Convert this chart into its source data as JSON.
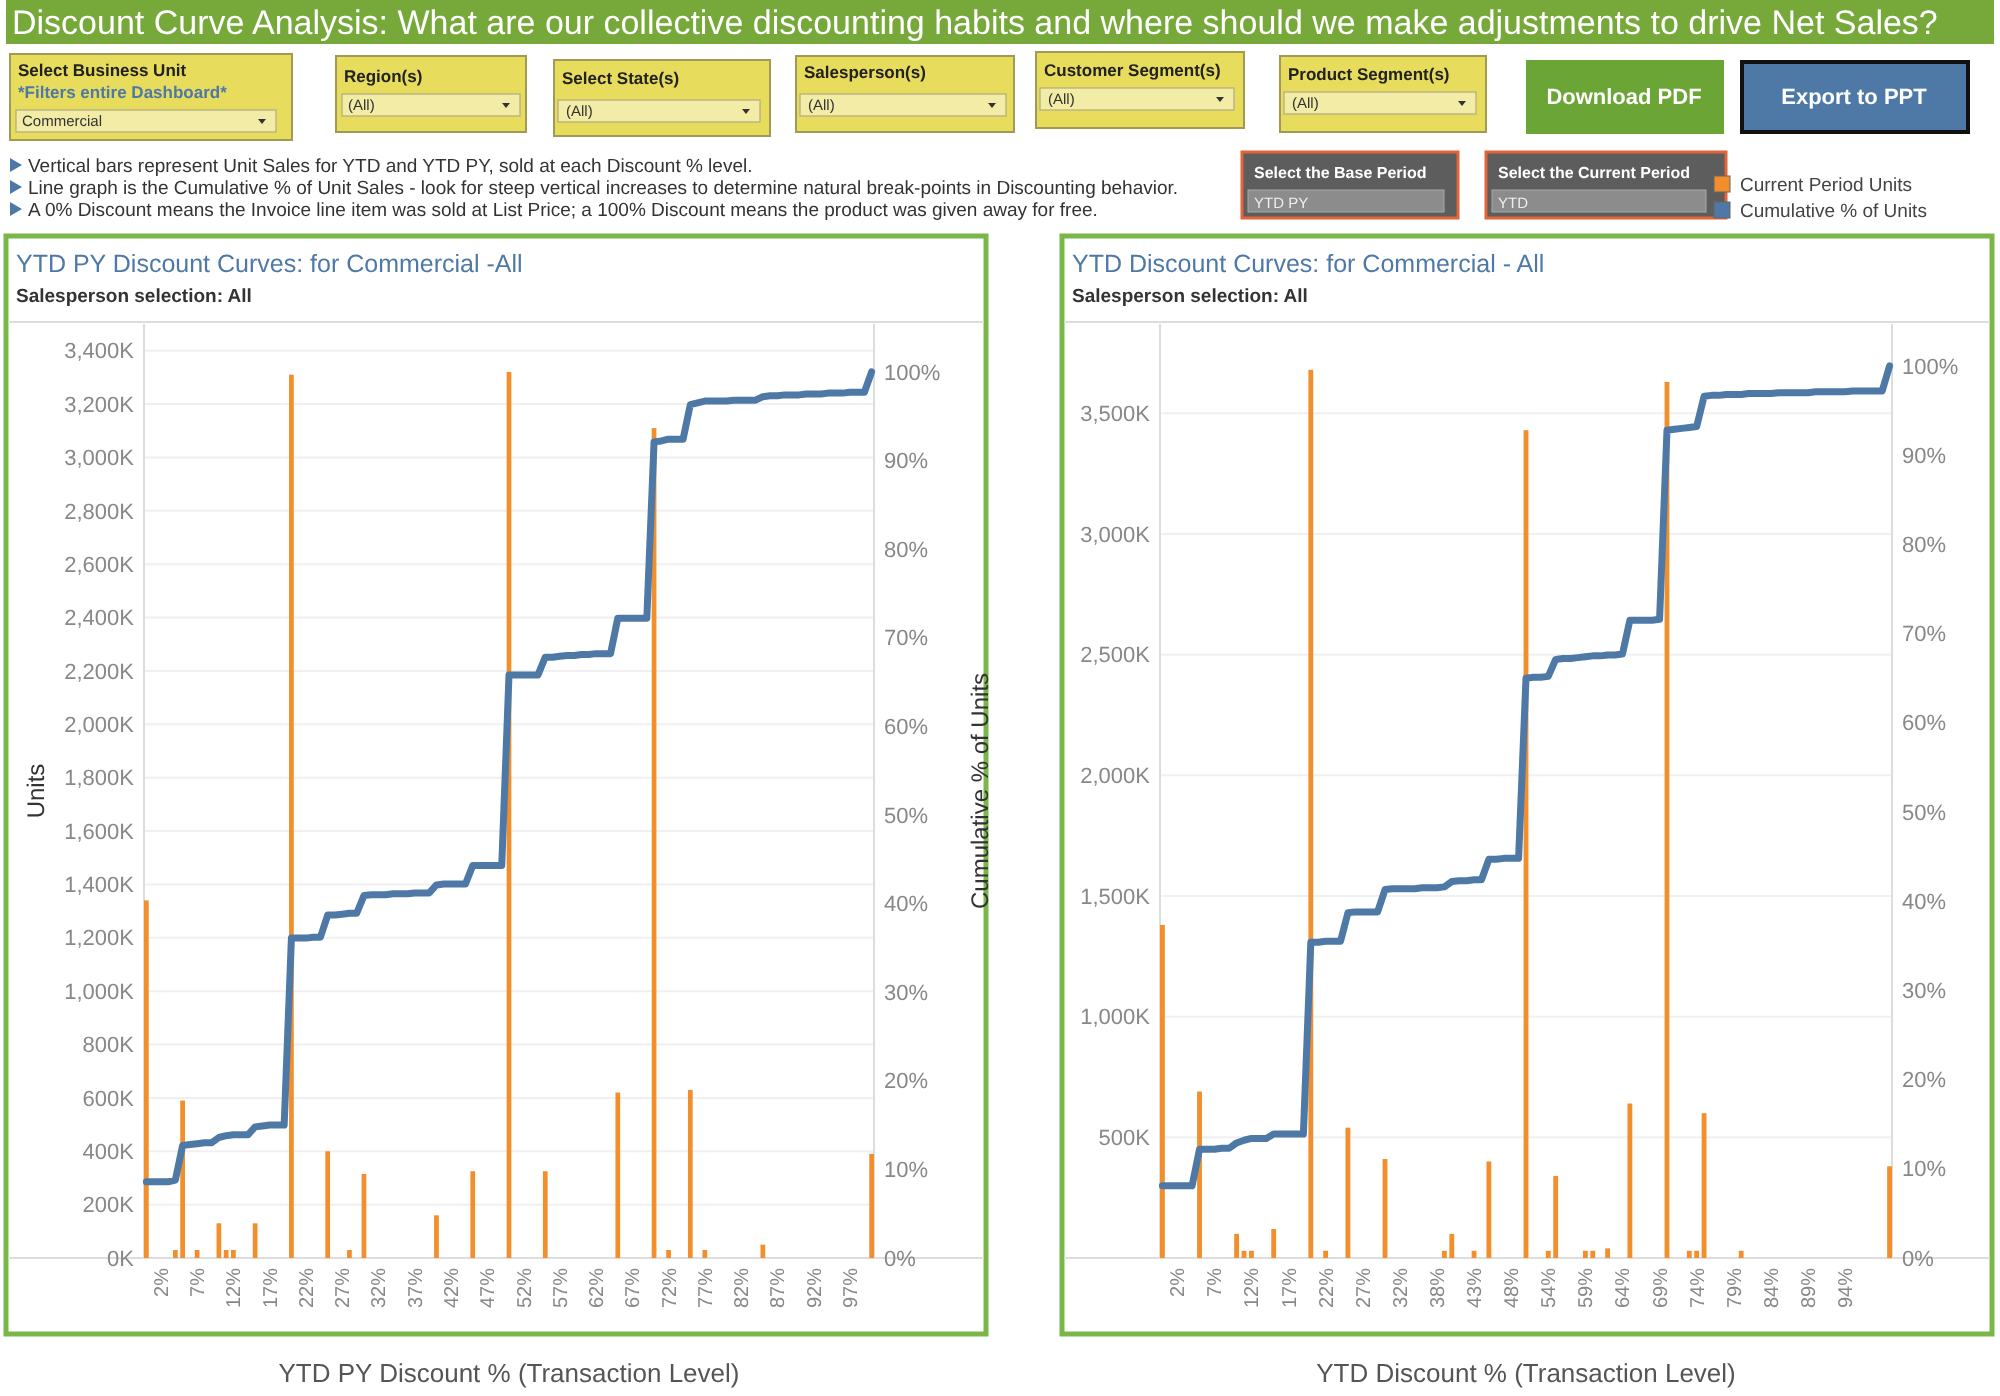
{
  "chart_data": [
    {
      "type": "other",
      "title": "Discount Curve Analysis: What are our collective discounting habits and where should we make adjustments to drive Net Sales?",
      "annotations": [
        "Select Business Unit",
        "*Filters entire Dashboard*",
        "Commercial",
        "Region(s)",
        "(All)",
        "Select State(s)",
        "(All)",
        "Salesperson(s)",
        "(All)",
        "Customer Segment(s)",
        "(All)",
        "Product Segment(s)",
        "(All)",
        "Download PDF",
        "Export to PPT",
        "Vertical bars represent Unit Sales for  YTD and YTD PY, sold at each Discount % level.",
        "Line graph is the Cumulative % of Unit Sales - look for steep vertical increases to determine natural break-points in Discounting behavior.",
        "A 0% Discount means the Invoice line item was sold at List Price; a 100% Discount means the product was given away for free.",
        "Select the Base Period",
        "YTD PY",
        "Select the Current Period",
        "YTD"
      ]
    },
    {
      "type": "bar",
      "title": "YTD PY Discount Curves: for Commercial -All",
      "subtitle": "Salesperson selection: All",
      "xlabel": "YTD PY Discount % (Transaction Level)",
      "ylabel": "Units",
      "y2label": "Cumulative % of Units",
      "legend": "top right",
      "grid": "y",
      "categories": [
        null,
        null,
        "2%",
        null,
        null,
        null,
        null,
        "7%",
        null,
        null,
        null,
        null,
        "12%",
        null,
        null,
        null,
        null,
        "17%",
        null,
        null,
        null,
        null,
        "22%",
        null,
        null,
        null,
        null,
        "27%",
        null,
        null,
        null,
        null,
        "32%",
        null,
        null,
        null,
        null,
        "37%",
        null,
        null,
        null,
        null,
        "42%",
        null,
        null,
        null,
        null,
        "47%",
        null,
        null,
        null,
        null,
        "52%",
        null,
        null,
        null,
        null,
        "57%",
        null,
        null,
        null,
        null,
        "62%",
        null,
        null,
        null,
        null,
        "67%",
        null,
        null,
        null,
        null,
        "72%",
        null,
        null,
        null,
        null,
        "77%",
        null,
        null,
        null,
        null,
        "82%",
        null,
        null,
        null,
        null,
        "87%",
        null,
        null,
        null,
        null,
        "92%",
        null,
        null,
        null,
        null,
        "97%",
        null,
        null,
        null
      ],
      "ylim": [
        0,
        3500
      ],
      "yticks": [
        {
          "value": 0,
          "label": "0K"
        },
        {
          "value": 200,
          "label": "200K"
        },
        {
          "value": 400,
          "label": "400K"
        },
        {
          "value": 600,
          "label": "600K"
        },
        {
          "value": 800,
          "label": "800K"
        },
        {
          "value": 1000,
          "label": "1,000K"
        },
        {
          "value": 1200,
          "label": "1,200K"
        },
        {
          "value": 1400,
          "label": "1,400K"
        },
        {
          "value": 1600,
          "label": "1,600K"
        },
        {
          "value": 1800,
          "label": "1,800K"
        },
        {
          "value": 2000,
          "label": "2,000K"
        },
        {
          "value": 2200,
          "label": "2,200K"
        },
        {
          "value": 2400,
          "label": "2,400K"
        },
        {
          "value": 2600,
          "label": "2,600K"
        },
        {
          "value": 2800,
          "label": "2,800K"
        },
        {
          "value": 3000,
          "label": "3,000K"
        },
        {
          "value": 3200,
          "label": "3,200K"
        },
        {
          "value": 3400,
          "label": "3,400K"
        }
      ],
      "y2lim": [
        0,
        105.4
      ],
      "y2ticks": [
        {
          "value": 0,
          "label": "0%"
        },
        {
          "value": 10,
          "label": "10%"
        },
        {
          "value": 20,
          "label": "20%"
        },
        {
          "value": 30,
          "label": "30%"
        },
        {
          "value": 40,
          "label": "40%"
        },
        {
          "value": 50,
          "label": "50%"
        },
        {
          "value": 60,
          "label": "60%"
        },
        {
          "value": 70,
          "label": "70%"
        },
        {
          "value": 80,
          "label": "80%"
        },
        {
          "value": 90,
          "label": "90%"
        },
        {
          "value": 100,
          "label": "100%"
        }
      ],
      "series": [
        {
          "name": "Current Period Units",
          "type": "bar",
          "color": "#f28e2b",
          "values": [
            1340,
            0,
            0,
            0,
            30,
            590,
            0,
            30,
            0,
            0,
            130,
            30,
            30,
            0,
            0,
            130,
            0,
            0,
            0,
            0,
            3310,
            0,
            0,
            0,
            0,
            400,
            0,
            0,
            30,
            0,
            315,
            0,
            0,
            0,
            0,
            0,
            0,
            0,
            0,
            0,
            160,
            0,
            0,
            0,
            0,
            325,
            0,
            0,
            0,
            0,
            3320,
            0,
            0,
            0,
            0,
            325,
            0,
            0,
            0,
            0,
            0,
            0,
            0,
            0,
            0,
            620,
            0,
            0,
            0,
            0,
            3110,
            0,
            30,
            0,
            0,
            630,
            0,
            30,
            0,
            0,
            0,
            0,
            0,
            0,
            0,
            50,
            0,
            0,
            0,
            0,
            0,
            0,
            0,
            0,
            0,
            0,
            0,
            0,
            0,
            0,
            390
          ]
        },
        {
          "name": "Cumulative % of Units",
          "type": "line",
          "axis": "y2",
          "color": "#4e79a7",
          "values": [
            8.6,
            8.6,
            8.6,
            8.6,
            8.8,
            12.7,
            12.8,
            12.9,
            13.0,
            13.0,
            13.6,
            13.8,
            13.9,
            13.9,
            13.9,
            14.8,
            14.9,
            15.0,
            15.0,
            15.0,
            36.1,
            36.1,
            36.1,
            36.2,
            36.2,
            38.7,
            38.7,
            38.8,
            38.9,
            38.9,
            40.9,
            41.0,
            41.0,
            41.0,
            41.1,
            41.1,
            41.1,
            41.2,
            41.2,
            41.2,
            42.1,
            42.2,
            42.2,
            42.2,
            42.2,
            44.3,
            44.3,
            44.3,
            44.3,
            44.3,
            65.8,
            65.8,
            65.8,
            65.8,
            65.8,
            67.8,
            67.8,
            67.9,
            68.0,
            68.0,
            68.1,
            68.1,
            68.2,
            68.2,
            68.2,
            72.2,
            72.2,
            72.2,
            72.2,
            72.2,
            92.1,
            92.2,
            92.4,
            92.4,
            92.4,
            96.3,
            96.5,
            96.7,
            96.7,
            96.7,
            96.7,
            96.8,
            96.8,
            96.8,
            96.8,
            97.2,
            97.3,
            97.3,
            97.4,
            97.4,
            97.4,
            97.5,
            97.5,
            97.5,
            97.6,
            97.6,
            97.6,
            97.7,
            97.7,
            97.7,
            100
          ]
        }
      ]
    },
    {
      "type": "bar",
      "title": "YTD Discount Curves: for Commercial - All",
      "subtitle": "Salesperson selection: All",
      "xlabel": "YTD Discount % (Transaction Level)",
      "grid": "y",
      "categories": [
        null,
        null,
        "2%",
        null,
        null,
        null,
        null,
        "7%",
        null,
        null,
        null,
        null,
        "12%",
        null,
        null,
        null,
        null,
        "17%",
        null,
        null,
        null,
        null,
        "22%",
        null,
        null,
        null,
        null,
        "27%",
        null,
        null,
        null,
        null,
        "32%",
        null,
        null,
        null,
        null,
        "38%",
        null,
        null,
        null,
        null,
        "43%",
        null,
        null,
        null,
        null,
        "48%",
        null,
        null,
        null,
        null,
        "54%",
        null,
        null,
        null,
        null,
        "59%",
        null,
        null,
        null,
        null,
        "64%",
        null,
        null,
        null,
        null,
        "69%",
        null,
        null,
        null,
        null,
        "74%",
        null,
        null,
        null,
        null,
        "79%",
        null,
        null,
        null,
        null,
        "84%",
        null,
        null,
        null,
        null,
        "89%",
        null,
        null,
        null,
        null,
        "94%",
        null,
        null,
        null,
        null,
        null,
        null
      ],
      "ylim": [
        0,
        3870
      ],
      "yticks": [
        {
          "value": 500,
          "label": "500K"
        },
        {
          "value": 1000,
          "label": "1,000K"
        },
        {
          "value": 1500,
          "label": "1,500K"
        },
        {
          "value": 2000,
          "label": "2,000K"
        },
        {
          "value": 2500,
          "label": "2,500K"
        },
        {
          "value": 3000,
          "label": "3,000K"
        },
        {
          "value": 3500,
          "label": "3,500K"
        }
      ],
      "y2lim": [
        0,
        104.7
      ],
      "y2ticks": [
        {
          "value": 0,
          "label": "0%"
        },
        {
          "value": 10,
          "label": "10%"
        },
        {
          "value": 20,
          "label": "20%"
        },
        {
          "value": 30,
          "label": "30%"
        },
        {
          "value": 40,
          "label": "40%"
        },
        {
          "value": 50,
          "label": "50%"
        },
        {
          "value": 60,
          "label": "60%"
        },
        {
          "value": 70,
          "label": "70%"
        },
        {
          "value": 80,
          "label": "80%"
        },
        {
          "value": 90,
          "label": "90%"
        },
        {
          "value": 100,
          "label": "100%"
        }
      ],
      "series": [
        {
          "type": "bar",
          "color": "#f28e2b",
          "values": [
            1380,
            0,
            0,
            0,
            0,
            690,
            0,
            0,
            0,
            0,
            100,
            30,
            30,
            0,
            0,
            120,
            0,
            0,
            0,
            0,
            3680,
            0,
            30,
            0,
            0,
            540,
            0,
            0,
            0,
            0,
            410,
            0,
            0,
            0,
            0,
            0,
            0,
            0,
            30,
            100,
            0,
            0,
            30,
            0,
            400,
            0,
            0,
            0,
            0,
            3430,
            0,
            0,
            30,
            340,
            0,
            0,
            0,
            30,
            30,
            0,
            40,
            0,
            0,
            640,
            0,
            0,
            0,
            0,
            3630,
            0,
            0,
            30,
            30,
            600,
            0,
            0,
            0,
            0,
            30,
            0,
            0,
            0,
            0,
            0,
            0,
            0,
            0,
            0,
            0,
            0,
            0,
            0,
            0,
            0,
            0,
            0,
            0,
            0,
            380
          ]
        },
        {
          "type": "line",
          "axis": "y2",
          "color": "#4e79a7",
          "values": [
            8.1,
            8.1,
            8.1,
            8.1,
            8.1,
            12.2,
            12.2,
            12.2,
            12.3,
            12.3,
            12.9,
            13.2,
            13.4,
            13.4,
            13.4,
            13.9,
            13.9,
            13.9,
            13.9,
            13.9,
            35.4,
            35.4,
            35.5,
            35.5,
            35.5,
            38.7,
            38.8,
            38.8,
            38.8,
            38.8,
            41.3,
            41.4,
            41.4,
            41.4,
            41.4,
            41.5,
            41.5,
            41.5,
            41.6,
            42.2,
            42.3,
            42.3,
            42.4,
            42.4,
            44.7,
            44.7,
            44.8,
            44.8,
            44.8,
            65.0,
            65.1,
            65.1,
            65.2,
            67.1,
            67.2,
            67.2,
            67.3,
            67.4,
            67.5,
            67.5,
            67.6,
            67.6,
            67.7,
            71.5,
            71.5,
            71.5,
            71.5,
            71.6,
            92.8,
            92.9,
            93.0,
            93.1,
            93.2,
            96.6,
            96.7,
            96.7,
            96.8,
            96.8,
            96.8,
            96.9,
            96.9,
            96.9,
            96.9,
            97.0,
            97.0,
            97.0,
            97.0,
            97.0,
            97.1,
            97.1,
            97.1,
            97.1,
            97.1,
            97.2,
            97.2,
            97.2,
            97.2,
            97.2,
            100
          ]
        }
      ]
    }
  ]
}
